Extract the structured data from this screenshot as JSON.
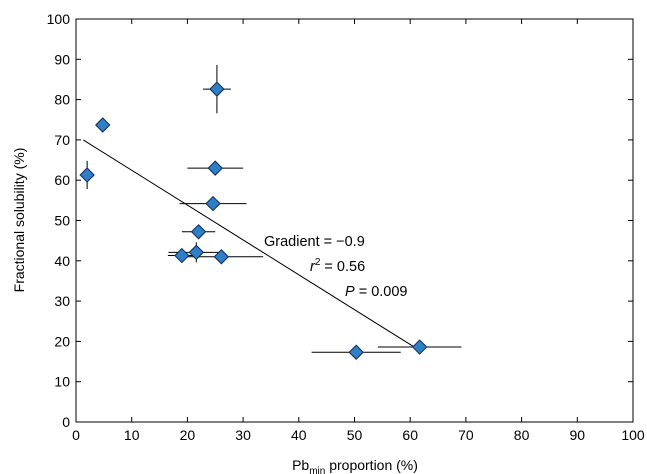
{
  "chart_data": {
    "type": "scatter",
    "xlabel_main": "Pb",
    "xlabel_sub": "min",
    "xlabel_rest": " proportion (%)",
    "ylabel": "Fractional solubility (%)",
    "xlim": [
      0,
      100
    ],
    "ylim": [
      0,
      100
    ],
    "xticks": [
      0,
      10,
      20,
      30,
      40,
      50,
      60,
      70,
      80,
      90,
      100
    ],
    "yticks": [
      0,
      10,
      20,
      30,
      40,
      50,
      60,
      70,
      80,
      90,
      100
    ],
    "grid": false,
    "marker": "diamond",
    "marker_color": "#2f7fc6",
    "marker_edge": "#0a2a55",
    "points": [
      {
        "x": 2.0,
        "y": 61.3,
        "xerr": 0.8,
        "yerr": 3.5
      },
      {
        "x": 4.8,
        "y": 73.7,
        "xerr": 1.2,
        "yerr": 0
      },
      {
        "x": 19.0,
        "y": 41.3,
        "xerr": 2.5,
        "yerr": 0
      },
      {
        "x": 21.6,
        "y": 42.1,
        "xerr": 5.0,
        "yerr": 2.5
      },
      {
        "x": 22.0,
        "y": 47.2,
        "xerr": 3.0,
        "yerr": 0
      },
      {
        "x": 24.6,
        "y": 54.2,
        "xerr": 6.0,
        "yerr": 0
      },
      {
        "x": 25.0,
        "y": 63.0,
        "xerr": 5.0,
        "yerr": 0
      },
      {
        "x": 25.3,
        "y": 82.6,
        "xerr": 2.5,
        "yerr": 6.0
      },
      {
        "x": 26.1,
        "y": 41.0,
        "xerr": 7.5,
        "yerr": 0
      },
      {
        "x": 50.3,
        "y": 17.3,
        "xerr": 8.0,
        "yerr": 0
      },
      {
        "x": 61.7,
        "y": 18.6,
        "xerr": 7.5,
        "yerr": 0
      }
    ],
    "regression": {
      "x1": 1.3,
      "y1": 70.0,
      "x2": 62.0,
      "y2": 17.5
    },
    "annotations": {
      "gradient": "Gradient = −0.9",
      "r2_italic": "r",
      "r2_sup": "2",
      "r2_rest": " = 0.56",
      "p_italic": "P",
      "p_rest": " = 0.009"
    }
  }
}
